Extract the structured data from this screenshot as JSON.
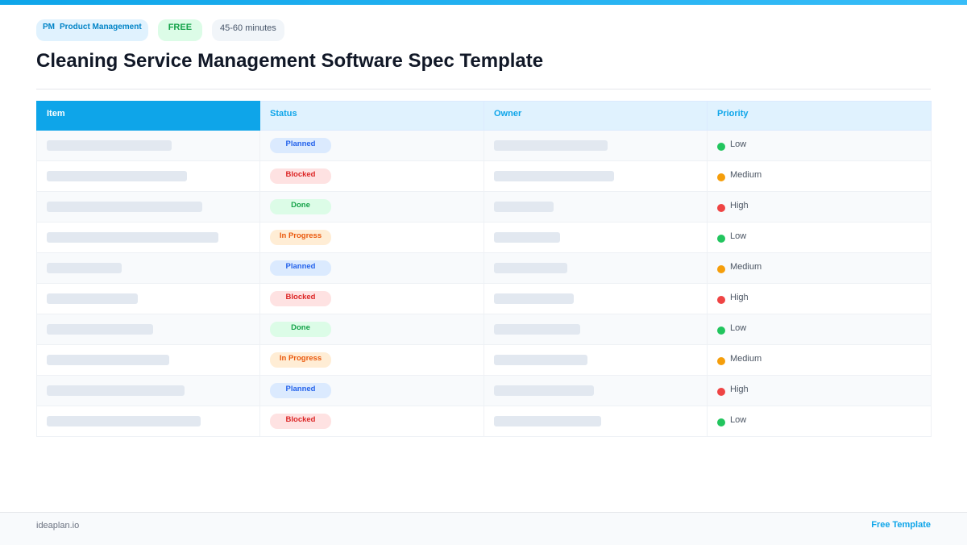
{
  "badges": {
    "pm": "PM",
    "category": "Product Management",
    "free": "FREE",
    "duration": "45-60 minutes"
  },
  "title": "Cleaning Service Management Software Spec Template",
  "table": {
    "headers": [
      "Item",
      "Status",
      "Owner",
      "Priority"
    ],
    "rows": [
      {
        "status": "Planned",
        "priority": "Low"
      },
      {
        "status": "Blocked",
        "priority": "Medium"
      },
      {
        "status": "Done",
        "priority": "High"
      },
      {
        "status": "In Progress",
        "priority": "Low"
      },
      {
        "status": "Planned",
        "priority": "Medium"
      },
      {
        "status": "Blocked",
        "priority": "High"
      },
      {
        "status": "Done",
        "priority": "Low"
      },
      {
        "status": "In Progress",
        "priority": "Medium"
      },
      {
        "status": "Planned",
        "priority": "High"
      },
      {
        "status": "Blocked",
        "priority": "Low"
      }
    ]
  },
  "colors": {
    "accent": "#0ea5e9",
    "priority_low": "#22c55e",
    "priority_medium": "#f59e0b",
    "priority_high": "#ef4444"
  },
  "footer": {
    "site": "ideaplan.io",
    "template_label": "Free Template"
  }
}
